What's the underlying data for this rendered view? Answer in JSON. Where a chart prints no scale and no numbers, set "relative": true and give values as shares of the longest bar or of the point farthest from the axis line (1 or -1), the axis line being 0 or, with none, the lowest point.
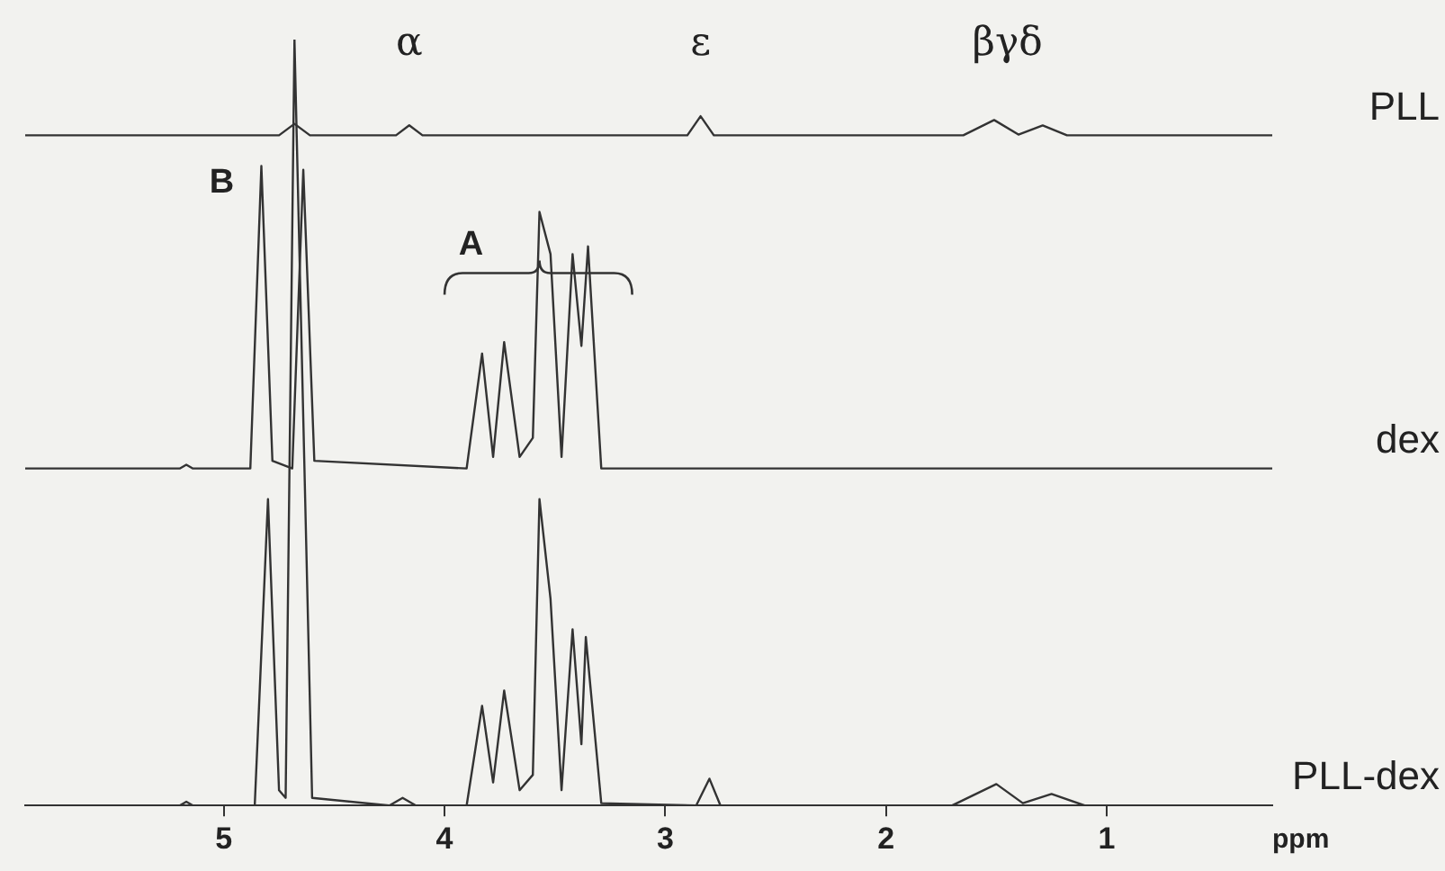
{
  "chart_data": {
    "type": "line",
    "relative": true,
    "xlim": [
      5.9,
      0.25
    ],
    "xticks": [
      5,
      4,
      3,
      2,
      1
    ],
    "xlabel": "ppm",
    "tick_labels": "x",
    "grid": false,
    "legend": false,
    "marker": "none",
    "annotations": [
      {
        "text": "α",
        "x": 4.16,
        "y": 0.888
      },
      {
        "text": "ε",
        "x": 2.84,
        "y": 0.9
      },
      {
        "text": "βγδ",
        "x": 1.45,
        "y": 0.895
      },
      {
        "text": "B",
        "x": 4.83,
        "y": 0.835
      },
      {
        "text": "A",
        "x": 3.57,
        "y": 0.775
      }
    ],
    "series": [
      {
        "name": "PLL",
        "color": "#333333",
        "x": [
          5.9,
          4.75,
          4.68,
          4.61,
          4.22,
          4.16,
          4.1,
          2.9,
          2.84,
          2.78,
          1.65,
          1.51,
          1.4,
          1.29,
          1.18,
          0.25
        ],
        "values": [
          0.875,
          0.875,
          0.89,
          0.875,
          0.875,
          0.888,
          0.875,
          0.875,
          0.9,
          0.875,
          0.875,
          0.895,
          0.876,
          0.888,
          0.875,
          0.875
        ]
      },
      {
        "name": "dex",
        "color": "#333333",
        "x": [
          5.9,
          5.2,
          5.17,
          5.14,
          4.88,
          4.83,
          4.78,
          4.69,
          4.64,
          4.59,
          3.9,
          3.83,
          3.78,
          3.73,
          3.66,
          3.6,
          3.57,
          3.52,
          3.47,
          3.42,
          3.38,
          3.35,
          3.29,
          0.25
        ],
        "values": [
          0.44,
          0.44,
          0.445,
          0.44,
          0.44,
          0.835,
          0.45,
          0.44,
          0.83,
          0.45,
          0.44,
          0.59,
          0.455,
          0.605,
          0.455,
          0.48,
          0.775,
          0.72,
          0.455,
          0.72,
          0.6,
          0.73,
          0.44,
          0.44
        ]
      },
      {
        "name": "PLL-dex",
        "color": "#333333",
        "x": [
          5.9,
          5.2,
          5.17,
          5.14,
          4.86,
          4.8,
          4.75,
          4.72,
          4.68,
          4.6,
          4.25,
          4.19,
          4.13,
          3.9,
          3.83,
          3.78,
          3.73,
          3.66,
          3.6,
          3.57,
          3.52,
          3.47,
          3.42,
          3.38,
          3.36,
          3.29,
          2.86,
          2.8,
          2.75,
          1.7,
          1.5,
          1.38,
          1.25,
          1.1,
          0.25
        ],
        "values": [
          0,
          0,
          0.005,
          0,
          0,
          0.4,
          0.02,
          0.01,
          1,
          0.01,
          0,
          0.01,
          0,
          0,
          0.13,
          0.03,
          0.15,
          0.02,
          0.04,
          0.4,
          0.27,
          0.02,
          0.23,
          0.08,
          0.22,
          0.003,
          0,
          0.035,
          0,
          0,
          0.028,
          0.003,
          0.015,
          0,
          0
        ]
      }
    ]
  }
}
